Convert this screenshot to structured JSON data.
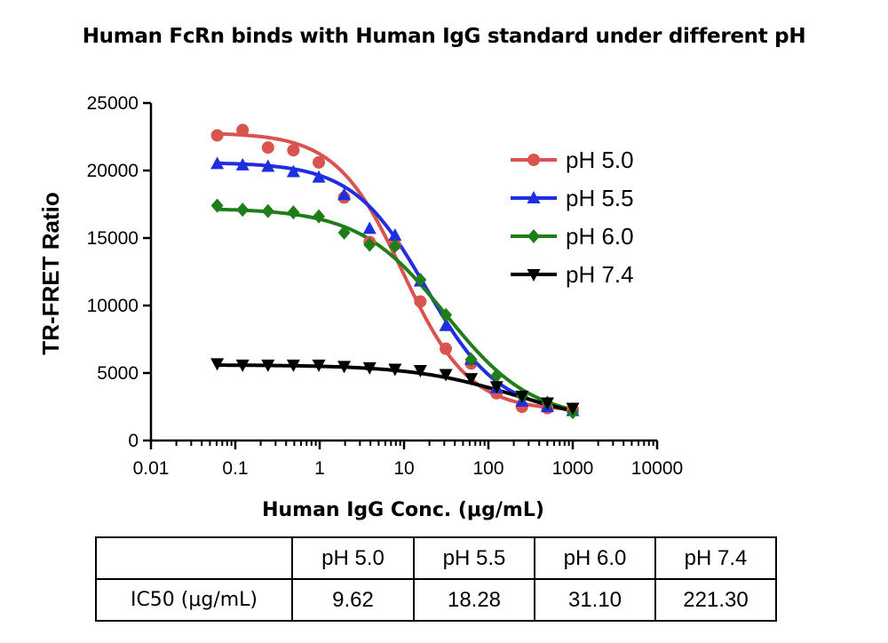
{
  "chart_data": {
    "type": "scatter",
    "title": "Human FcRn binds with Human IgG standard under different pH",
    "xlabel": "Human IgG Conc. (μg/mL)",
    "ylabel": "TR-FRET Ratio",
    "xscale": "log",
    "xlim": [
      0.01,
      10000
    ],
    "ylim": [
      0,
      25000
    ],
    "x_ticks": [
      "0.01",
      "0.1",
      "1",
      "10",
      "100",
      "1000",
      "10000"
    ],
    "y_ticks": [
      "0",
      "5000",
      "10000",
      "15000",
      "20000",
      "25000"
    ],
    "grid": false,
    "legend_position": "top-right",
    "x": [
      0.061,
      0.122,
      0.244,
      0.488,
      0.977,
      1.95,
      3.91,
      7.81,
      15.6,
      31.3,
      62.5,
      125,
      250,
      500,
      1000
    ],
    "series": [
      {
        "name": "pH 5.0",
        "color": "#d9534f",
        "marker": "circle",
        "values": [
          22600,
          23000,
          21700,
          21500,
          20600,
          18000,
          14700,
          14500,
          10300,
          6800,
          5700,
          3500,
          2500,
          2400,
          2300
        ],
        "fit": {
          "top": 22800,
          "bottom": 2200,
          "ic50": 9.62,
          "hill": 1.1
        }
      },
      {
        "name": "pH 5.5",
        "color": "#1f2fe0",
        "marker": "triangle-up",
        "values": [
          20500,
          20400,
          20300,
          19900,
          19500,
          18200,
          15700,
          15200,
          11800,
          8500,
          6000,
          3900,
          2900,
          2500,
          2200
        ],
        "fit": {
          "top": 20600,
          "bottom": 2000,
          "ic50": 18.28,
          "hill": 1.0
        }
      },
      {
        "name": "pH 6.0",
        "color": "#1f7d1a",
        "marker": "diamond",
        "values": [
          17400,
          17100,
          17000,
          16900,
          16600,
          15400,
          14500,
          14400,
          11900,
          9300,
          6000,
          4800,
          3300,
          2800,
          2100
        ],
        "fit": {
          "top": 17200,
          "bottom": 1500,
          "ic50": 31.1,
          "hill": 0.85
        }
      },
      {
        "name": "pH 7.4",
        "color": "#000000",
        "marker": "triangle-down",
        "values": [
          5700,
          5600,
          5600,
          5600,
          5600,
          5500,
          5400,
          5300,
          5200,
          4900,
          4600,
          4000,
          3300,
          2800,
          2400
        ],
        "fit": {
          "top": 5600,
          "bottom": 1000,
          "ic50": 221.3,
          "hill": 0.7
        }
      }
    ]
  },
  "table": {
    "headers": [
      "",
      "pH 5.0",
      "pH 5.5",
      "pH 6.0",
      "pH 7.4"
    ],
    "row_label": "IC50 (μg/mL)",
    "values": [
      "9.62",
      "18.28",
      "31.10",
      "221.30"
    ]
  }
}
